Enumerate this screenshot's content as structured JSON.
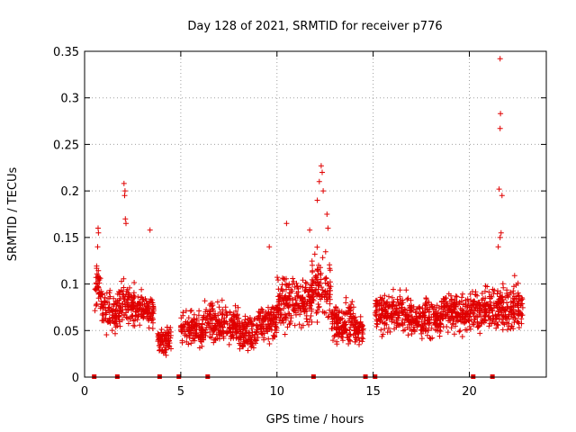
{
  "chart_data": {
    "type": "scatter",
    "title": "Day 128 of 2021, SRMTID for receiver p776",
    "xlabel": "GPS time / hours",
    "ylabel": "SRMTID / TECUs",
    "xlim": [
      0,
      24
    ],
    "ylim": [
      0,
      0.35
    ],
    "xticks": [
      0,
      5,
      10,
      15,
      20
    ],
    "yticks": [
      0,
      0.05,
      0.1,
      0.15,
      0.2,
      0.25,
      0.3,
      0.35
    ],
    "xtick_labels": [
      "0",
      "5",
      "10",
      "15",
      "20"
    ],
    "ytick_labels": [
      "0",
      "0.05",
      "0.1",
      "0.15",
      "0.2",
      "0.25",
      "0.3",
      "0.35"
    ],
    "grid": true,
    "marker": "+",
    "series_color": "#e00000",
    "data_gap_markers_x": [
      0.5,
      1.7,
      3.9,
      4.9,
      6.4,
      11.9,
      14.6,
      15.1,
      20.2,
      21.2
    ],
    "segments": [
      {
        "x": [
          0.5,
          0.9
        ],
        "lo": 0.06,
        "hi": 0.13
      },
      {
        "x": [
          0.9,
          1.8
        ],
        "lo": 0.04,
        "hi": 0.1
      },
      {
        "x": [
          1.8,
          2.6
        ],
        "lo": 0.05,
        "hi": 0.11
      },
      {
        "x": [
          2.6,
          3.6
        ],
        "lo": 0.05,
        "hi": 0.095
      },
      {
        "x": [
          3.8,
          4.5
        ],
        "lo": 0.02,
        "hi": 0.06
      },
      {
        "x": [
          5.0,
          6.2
        ],
        "lo": 0.025,
        "hi": 0.075
      },
      {
        "x": [
          6.2,
          8.0
        ],
        "lo": 0.03,
        "hi": 0.085
      },
      {
        "x": [
          8.0,
          9.0
        ],
        "lo": 0.025,
        "hi": 0.07
      },
      {
        "x": [
          9.0,
          10.0
        ],
        "lo": 0.03,
        "hi": 0.09
      },
      {
        "x": [
          10.0,
          11.8
        ],
        "lo": 0.04,
        "hi": 0.12
      },
      {
        "x": [
          11.8,
          12.8
        ],
        "lo": 0.05,
        "hi": 0.14
      },
      {
        "x": [
          12.8,
          14.0
        ],
        "lo": 0.03,
        "hi": 0.09
      },
      {
        "x": [
          14.0,
          14.5
        ],
        "lo": 0.03,
        "hi": 0.07
      },
      {
        "x": [
          15.1,
          17.0
        ],
        "lo": 0.04,
        "hi": 0.095
      },
      {
        "x": [
          17.0,
          18.5
        ],
        "lo": 0.035,
        "hi": 0.09
      },
      {
        "x": [
          18.5,
          20.2
        ],
        "lo": 0.04,
        "hi": 0.1
      },
      {
        "x": [
          20.2,
          21.2
        ],
        "lo": 0.045,
        "hi": 0.1
      },
      {
        "x": [
          21.2,
          22.8
        ],
        "lo": 0.04,
        "hi": 0.11
      }
    ],
    "outliers": [
      {
        "x": 0.7,
        "y": 0.16
      },
      {
        "x": 0.72,
        "y": 0.155
      },
      {
        "x": 0.68,
        "y": 0.14
      },
      {
        "x": 2.05,
        "y": 0.208
      },
      {
        "x": 2.1,
        "y": 0.2
      },
      {
        "x": 2.08,
        "y": 0.195
      },
      {
        "x": 2.12,
        "y": 0.17
      },
      {
        "x": 2.15,
        "y": 0.165
      },
      {
        "x": 3.4,
        "y": 0.158
      },
      {
        "x": 9.6,
        "y": 0.14
      },
      {
        "x": 10.5,
        "y": 0.165
      },
      {
        "x": 11.7,
        "y": 0.158
      },
      {
        "x": 12.1,
        "y": 0.19
      },
      {
        "x": 12.2,
        "y": 0.21
      },
      {
        "x": 12.3,
        "y": 0.227
      },
      {
        "x": 12.35,
        "y": 0.22
      },
      {
        "x": 12.4,
        "y": 0.2
      },
      {
        "x": 12.6,
        "y": 0.175
      },
      {
        "x": 12.65,
        "y": 0.16
      },
      {
        "x": 21.6,
        "y": 0.342
      },
      {
        "x": 21.62,
        "y": 0.283
      },
      {
        "x": 21.6,
        "y": 0.267
      },
      {
        "x": 21.55,
        "y": 0.202
      },
      {
        "x": 21.7,
        "y": 0.195
      },
      {
        "x": 21.65,
        "y": 0.155
      },
      {
        "x": 21.6,
        "y": 0.15
      },
      {
        "x": 21.5,
        "y": 0.14
      }
    ]
  }
}
